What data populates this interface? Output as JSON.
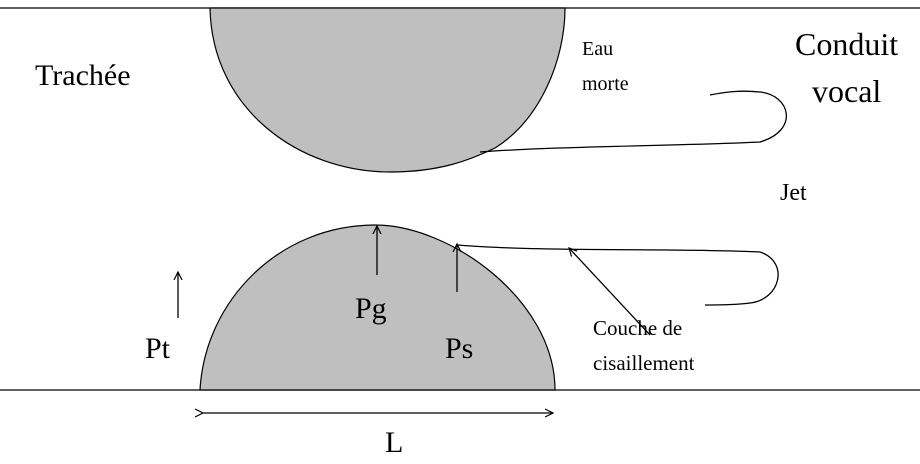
{
  "labels": {
    "trachea": "Trachée",
    "dead_water": [
      "Eau",
      "morte"
    ],
    "vocal_tract": [
      "Conduit",
      "vocal"
    ],
    "jet": "Jet",
    "pg": "Pg",
    "ps": "Ps",
    "pt": "Pt",
    "shear_layer": [
      "Couche de",
      "cisaillement"
    ],
    "length": "L"
  }
}
